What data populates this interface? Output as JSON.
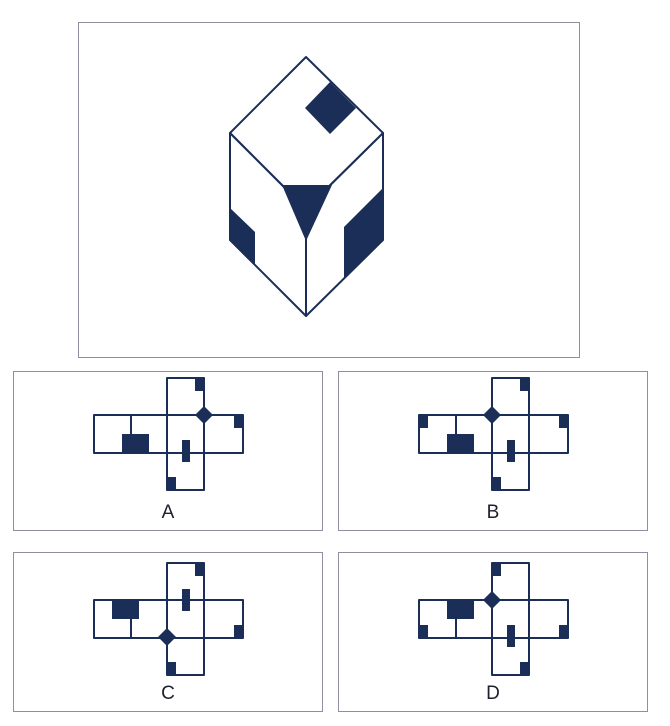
{
  "puzzle": {
    "colors": {
      "ink": "#1a2e57",
      "frame": "#8e8fa0",
      "background": "#ffffff"
    },
    "options": [
      {
        "label": "A"
      },
      {
        "label": "B"
      },
      {
        "label": "C"
      },
      {
        "label": "D"
      }
    ]
  }
}
